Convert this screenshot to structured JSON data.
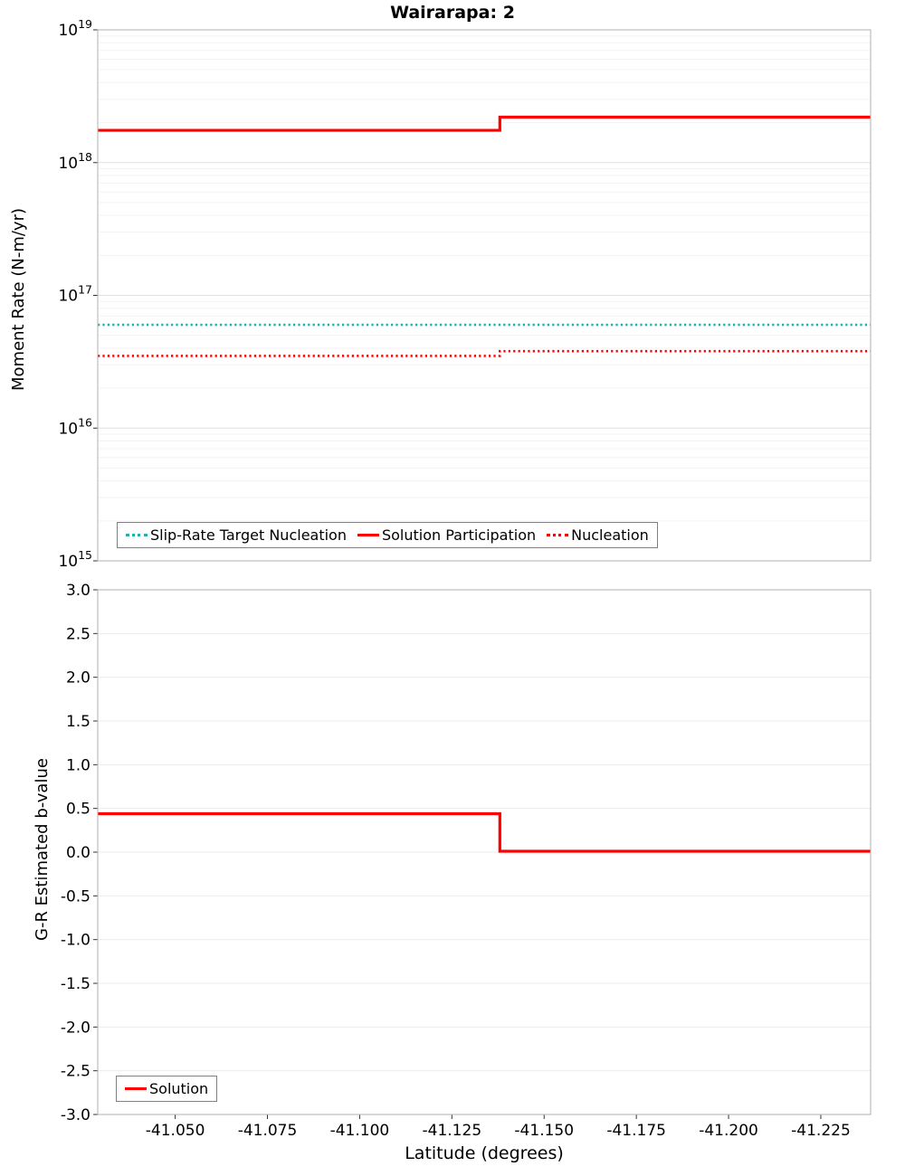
{
  "figure_title": "Wairarapa: 2",
  "chart_data": [
    {
      "type": "line",
      "title": "Wairarapa: 2",
      "ylabel": "Moment Rate (N-m/yr)",
      "yscale": "log",
      "ylim_exponents": [
        15,
        19
      ],
      "ytick_exponents": [
        15,
        16,
        17,
        18,
        19
      ],
      "x_edges": [
        -41.029,
        -41.138,
        -41.2385
      ],
      "series": [
        {
          "name": "Slip-Rate Target Nucleation",
          "color": "#20B2AA",
          "dash": "dotted",
          "values": [
            6e+16,
            6e+16
          ]
        },
        {
          "name": "Solution Participation",
          "color": "#FF0000",
          "dash": "solid",
          "values": [
            1.75e+18,
            2.2e+18
          ]
        },
        {
          "name": "Nucleation",
          "color": "#FF0000",
          "dash": "dotted",
          "values": [
            3.5e+16,
            3.8e+16
          ]
        }
      ],
      "legend_position": "bottom-inside",
      "grid": true
    },
    {
      "type": "line",
      "ylabel": "G-R Estimated b-value",
      "xlabel": "Latitude (degrees)",
      "ylim": [
        -3.0,
        3.0
      ],
      "ytick_step": 0.5,
      "x_edges": [
        -41.029,
        -41.138,
        -41.2385
      ],
      "x_ticks": [
        -41.05,
        -41.075,
        -41.1,
        -41.125,
        -41.15,
        -41.175,
        -41.2,
        -41.225
      ],
      "x_tick_labels": [
        "-41.050",
        "-41.075",
        "-41.100",
        "-41.125",
        "-41.150",
        "-41.175",
        "-41.200",
        "-41.225"
      ],
      "series": [
        {
          "name": "Solution",
          "color": "#FF0000",
          "dash": "solid",
          "values": [
            0.44,
            0.01
          ]
        }
      ],
      "legend_position": "bottom-left-inside",
      "grid": true
    }
  ],
  "colors": {
    "solution_red": "#FF0000",
    "slip_rate_teal": "#20B2AA",
    "grid_major": "#e0e0e0",
    "grid_minor": "#f3f3f3",
    "plot_border": "#b0b0b0"
  }
}
